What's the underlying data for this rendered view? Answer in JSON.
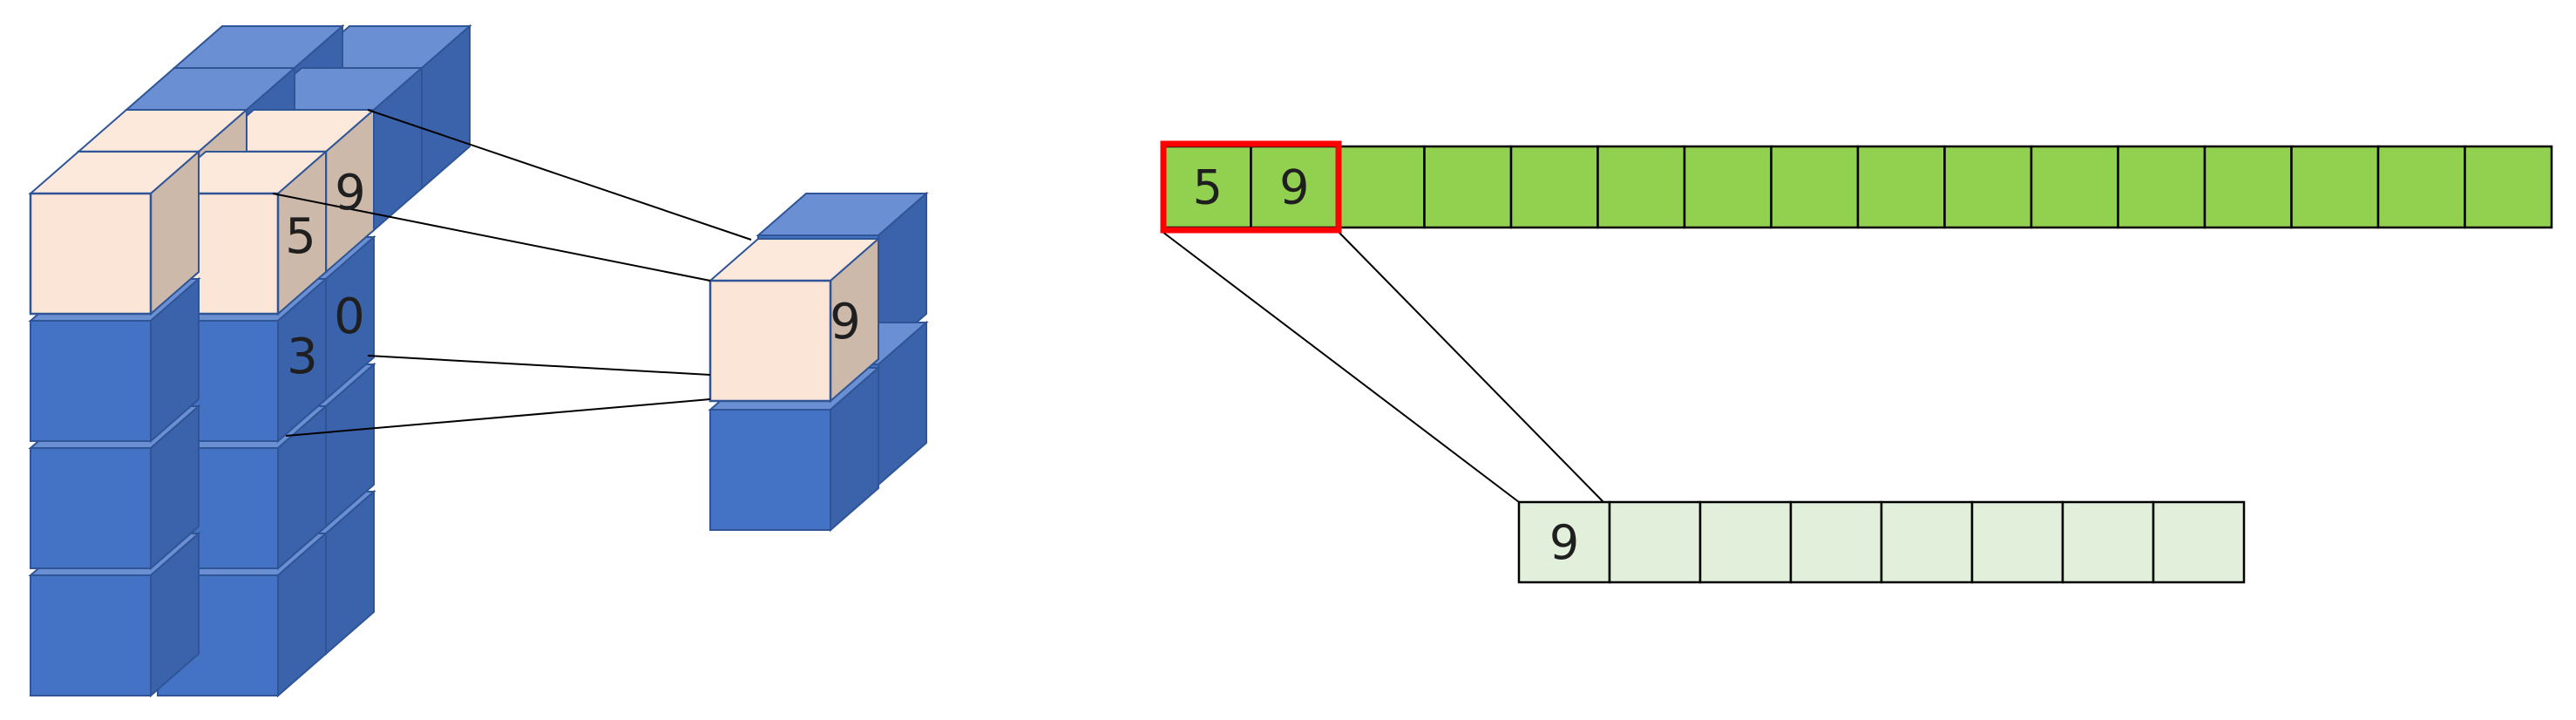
{
  "colors": {
    "cube_front": "#4472c4",
    "cube_top": "#6a8fd3",
    "cube_side": "#3a63ab",
    "cube_outline": "#2f5597",
    "highlight_front": "#fae5d6",
    "highlight_top": "#fce9dc",
    "highlight_side": "#cdb9aa",
    "array_fill": "#92d050",
    "output_fill": "#e2efda",
    "selection_border": "#ff0000",
    "line": "#000000"
  },
  "volume": {
    "values": {
      "front_top": "5",
      "front_second": "3",
      "back_top": "9",
      "back_second": "0"
    }
  },
  "pooled_cube": {
    "value": "9"
  },
  "input_array": {
    "cells": [
      "5",
      "9",
      "",
      "",
      "",
      "",
      "",
      "",
      "",
      "",
      "",
      "",
      "",
      "",
      "",
      ""
    ],
    "selected_count": 2
  },
  "output_array": {
    "cells": [
      "9",
      "",
      "",
      "",
      "",
      "",
      "",
      ""
    ]
  }
}
